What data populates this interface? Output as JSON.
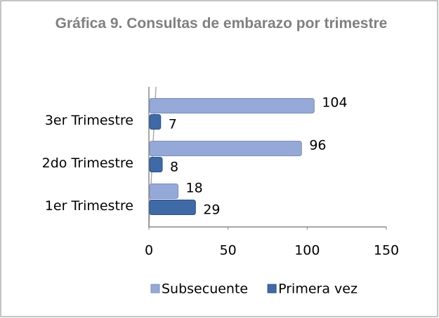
{
  "chart_data": {
    "type": "bar",
    "orientation": "horizontal",
    "title": "Gráfica 9. Consultas de embarazo por trimestre",
    "categories": [
      "1er Trimestre",
      "2do Trimestre",
      "3er Trimestre"
    ],
    "series": [
      {
        "name": "Subsecuente",
        "color": "#95a9d8",
        "values": [
          18,
          96,
          104
        ]
      },
      {
        "name": "Primera vez",
        "color": "#3e6aa8",
        "values": [
          29,
          8,
          7
        ]
      }
    ],
    "xlim": [
      0,
      150
    ],
    "xticks": [
      0,
      50,
      100,
      150
    ],
    "legend": "bottom"
  }
}
